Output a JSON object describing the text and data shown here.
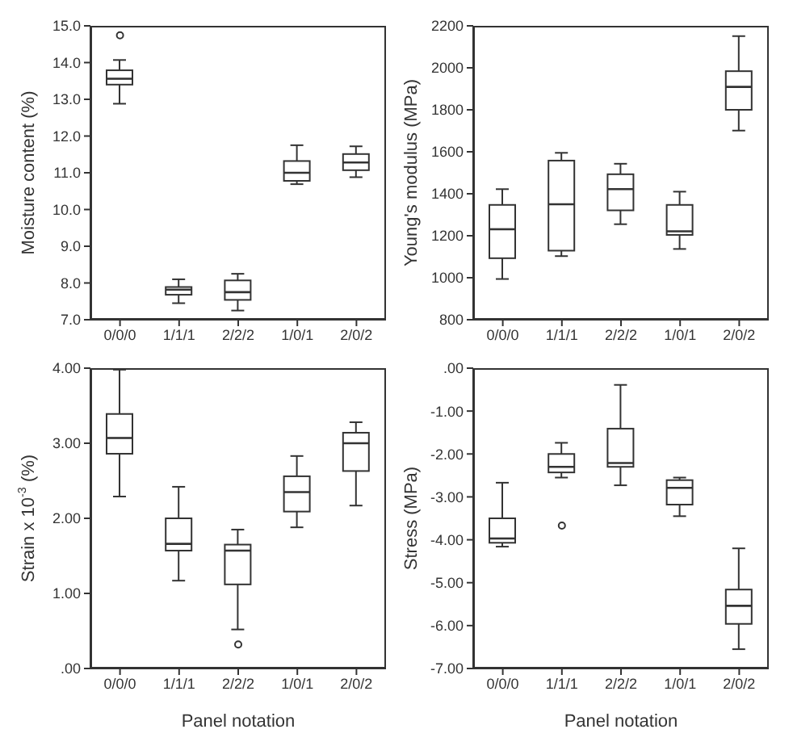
{
  "chart_data": [
    {
      "type": "box",
      "ylabel": "Moisture content (%)",
      "categories": [
        "0/0/0",
        "1/1/1",
        "2/2/2",
        "1/0/1",
        "2/0/2"
      ],
      "ylim": [
        7,
        15
      ],
      "yticks": [
        {
          "value": 7,
          "label": "7.0"
        },
        {
          "value": 8,
          "label": "8.0"
        },
        {
          "value": 9,
          "label": "9.0"
        },
        {
          "value": 10,
          "label": "10.0"
        },
        {
          "value": 11,
          "label": "11.0"
        },
        {
          "value": 12,
          "label": "12.0"
        },
        {
          "value": 13,
          "label": "13.0"
        },
        {
          "value": 14,
          "label": "14.0"
        },
        {
          "value": 15,
          "label": "15.0"
        }
      ],
      "boxes": [
        {
          "low": 12.88,
          "q1": 13.4,
          "median": 13.56,
          "q3": 13.79,
          "high": 14.07,
          "outliers": [
            14.74
          ]
        },
        {
          "low": 7.45,
          "q1": 7.68,
          "median": 7.82,
          "q3": 7.89,
          "high": 8.1
        },
        {
          "low": 7.25,
          "q1": 7.54,
          "median": 7.75,
          "q3": 8.07,
          "high": 8.25
        },
        {
          "low": 10.69,
          "q1": 10.78,
          "median": 11.0,
          "q3": 11.32,
          "high": 11.75
        },
        {
          "low": 10.88,
          "q1": 11.07,
          "median": 11.28,
          "q3": 11.51,
          "high": 11.72
        }
      ]
    },
    {
      "type": "box",
      "ylabel": "Young's modulus (MPa)",
      "categories": [
        "0/0/0",
        "1/1/1",
        "2/2/2",
        "1/0/1",
        "2/0/2"
      ],
      "ylim": [
        800,
        2200
      ],
      "yticks": [
        800,
        1000,
        1200,
        1400,
        1600,
        1800,
        2000,
        2200
      ],
      "boxes": [
        {
          "low": 994,
          "q1": 1093,
          "median": 1231,
          "q3": 1347,
          "high": 1422
        },
        {
          "low": 1103,
          "q1": 1129,
          "median": 1350,
          "q3": 1558,
          "high": 1595
        },
        {
          "low": 1255,
          "q1": 1321,
          "median": 1422,
          "q3": 1493,
          "high": 1543
        },
        {
          "low": 1137,
          "q1": 1204,
          "median": 1221,
          "q3": 1347,
          "high": 1410
        },
        {
          "low": 1701,
          "q1": 1800,
          "median": 1909,
          "q3": 1984,
          "high": 2151
        }
      ]
    },
    {
      "type": "box",
      "ylabel": "Strain x 10$^{-3}$ (%)",
      "xlabel": "Panel notation",
      "categories": [
        "0/0/0",
        "1/1/1",
        "2/2/2",
        "1/0/1",
        "2/0/2"
      ],
      "ylim": [
        0,
        4
      ],
      "yticks": [
        {
          "value": 0,
          "label": ".00"
        },
        {
          "value": 1,
          "label": "1.00"
        },
        {
          "value": 2,
          "label": "2.00"
        },
        {
          "value": 3,
          "label": "3.00"
        },
        {
          "value": 4,
          "label": "4.00"
        }
      ],
      "boxes": [
        {
          "low": 2.29,
          "q1": 2.86,
          "median": 3.07,
          "q3": 3.39,
          "high": 3.98
        },
        {
          "low": 1.17,
          "q1": 1.57,
          "median": 1.66,
          "q3": 2.0,
          "high": 2.42
        },
        {
          "low": 0.52,
          "q1": 1.12,
          "median": 1.57,
          "q3": 1.65,
          "high": 1.85,
          "outliers": [
            0.32
          ]
        },
        {
          "low": 1.88,
          "q1": 2.09,
          "median": 2.35,
          "q3": 2.56,
          "high": 2.83
        },
        {
          "low": 2.17,
          "q1": 2.63,
          "median": 3.0,
          "q3": 3.14,
          "high": 3.28
        }
      ]
    },
    {
      "type": "box",
      "ylabel": "Stress (MPa)",
      "xlabel": "Panel notation",
      "categories": [
        "0/0/0",
        "1/1/1",
        "2/2/2",
        "1/0/1",
        "2/0/2"
      ],
      "ylim": [
        -7,
        0
      ],
      "yticks": [
        {
          "value": -7,
          "label": "-7.00"
        },
        {
          "value": -6,
          "label": "-6.00"
        },
        {
          "value": -5,
          "label": "-5.00"
        },
        {
          "value": -4,
          "label": "-4.00"
        },
        {
          "value": -3,
          "label": "-3.00"
        },
        {
          "value": -2,
          "label": "-2.00"
        },
        {
          "value": -1,
          "label": "-1.00"
        },
        {
          "value": 0,
          "label": ".00"
        }
      ],
      "boxes": [
        {
          "low": -4.16,
          "q1": -4.07,
          "median": -3.97,
          "q3": -3.5,
          "high": -2.67
        },
        {
          "low": -2.55,
          "q1": -2.43,
          "median": -2.3,
          "q3": -2.0,
          "high": -1.74,
          "outliers": [
            -3.67
          ]
        },
        {
          "low": -2.73,
          "q1": -2.3,
          "median": -2.21,
          "q3": -1.41,
          "high": -0.39
        },
        {
          "low": -3.45,
          "q1": -3.18,
          "median": -2.79,
          "q3": -2.61,
          "high": -2.55
        },
        {
          "low": -6.55,
          "q1": -5.96,
          "median": -5.54,
          "q3": -5.16,
          "high": -4.2
        }
      ]
    }
  ]
}
